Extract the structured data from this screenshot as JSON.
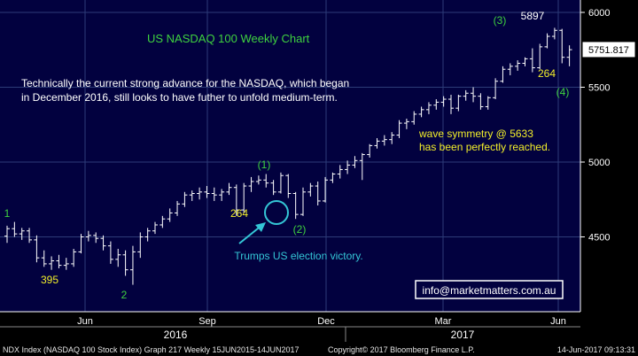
{
  "chart_data": {
    "type": "bar",
    "subtype": "ohlc",
    "title": "US NASDAQ 100 Weekly Chart",
    "x_labels": [
      "Jun",
      "Sep",
      "Dec",
      "Mar",
      "Jun"
    ],
    "year_labels": [
      "2016",
      "2017"
    ],
    "y_ticks": [
      4500,
      5000,
      5500,
      6000
    ],
    "ylim": [
      4000,
      6100
    ],
    "last_price_label": "5751.817",
    "grid": true,
    "colors": {
      "background": "#02013f",
      "grid": "#2d3c78",
      "bars": "#ffffff",
      "green": "#3fd23f",
      "yellow": "#f2ee2a",
      "cyan": "#34c6d6",
      "note": "#ffffff"
    },
    "bars": [
      [
        4505,
        4575,
        4460,
        4555
      ],
      [
        4555,
        4600,
        4500,
        4520
      ],
      [
        4520,
        4560,
        4480,
        4540
      ],
      [
        4540,
        4560,
        4460,
        4480
      ],
      [
        4480,
        4510,
        4330,
        4360
      ],
      [
        4360,
        4410,
        4300,
        4320
      ],
      [
        4320,
        4370,
        4280,
        4340
      ],
      [
        4340,
        4380,
        4290,
        4310
      ],
      [
        4310,
        4360,
        4280,
        4320
      ],
      [
        4320,
        4420,
        4300,
        4400
      ],
      [
        4400,
        4520,
        4390,
        4500
      ],
      [
        4500,
        4540,
        4470,
        4510
      ],
      [
        4510,
        4530,
        4460,
        4490
      ],
      [
        4490,
        4510,
        4410,
        4440
      ],
      [
        4440,
        4470,
        4320,
        4350
      ],
      [
        4350,
        4420,
        4300,
        4380
      ],
      [
        4380,
        4410,
        4240,
        4280
      ],
      [
        4280,
        4440,
        4180,
        4400
      ],
      [
        4400,
        4530,
        4360,
        4500
      ],
      [
        4500,
        4560,
        4470,
        4540
      ],
      [
        4540,
        4600,
        4520,
        4580
      ],
      [
        4580,
        4640,
        4560,
        4620
      ],
      [
        4620,
        4690,
        4600,
        4660
      ],
      [
        4660,
        4740,
        4640,
        4720
      ],
      [
        4720,
        4800,
        4700,
        4780
      ],
      [
        4780,
        4810,
        4740,
        4790
      ],
      [
        4790,
        4830,
        4750,
        4800
      ],
      [
        4800,
        4840,
        4760,
        4790
      ],
      [
        4790,
        4830,
        4740,
        4780
      ],
      [
        4780,
        4820,
        4740,
        4800
      ],
      [
        4800,
        4860,
        4780,
        4830
      ],
      [
        4830,
        4850,
        4640,
        4680
      ],
      [
        4680,
        4860,
        4660,
        4840
      ],
      [
        4840,
        4900,
        4800,
        4870
      ],
      [
        4870,
        4910,
        4850,
        4880
      ],
      [
        4880,
        4920,
        4830,
        4860
      ],
      [
        4860,
        4880,
        4780,
        4800
      ],
      [
        4800,
        4930,
        4790,
        4910
      ],
      [
        4910,
        4920,
        4760,
        4790
      ],
      [
        4790,
        4800,
        4620,
        4650
      ],
      [
        4650,
        4830,
        4640,
        4800
      ],
      [
        4800,
        4860,
        4770,
        4840
      ],
      [
        4840,
        4870,
        4710,
        4740
      ],
      [
        4740,
        4900,
        4730,
        4880
      ],
      [
        4880,
        4930,
        4860,
        4920
      ],
      [
        4920,
        4980,
        4890,
        4950
      ],
      [
        4950,
        5010,
        4920,
        4980
      ],
      [
        4980,
        5040,
        4960,
        5010
      ],
      [
        5010,
        5060,
        4880,
        5050
      ],
      [
        5050,
        5120,
        5030,
        5110
      ],
      [
        5110,
        5160,
        5090,
        5140
      ],
      [
        5140,
        5180,
        5110,
        5150
      ],
      [
        5150,
        5200,
        5120,
        5180
      ],
      [
        5180,
        5280,
        5160,
        5260
      ],
      [
        5260,
        5290,
        5220,
        5270
      ],
      [
        5270,
        5340,
        5250,
        5320
      ],
      [
        5320,
        5370,
        5300,
        5350
      ],
      [
        5350,
        5400,
        5320,
        5380
      ],
      [
        5380,
        5420,
        5350,
        5400
      ],
      [
        5400,
        5440,
        5370,
        5420
      ],
      [
        5420,
        5450,
        5320,
        5360
      ],
      [
        5360,
        5450,
        5340,
        5440
      ],
      [
        5440,
        5480,
        5410,
        5460
      ],
      [
        5460,
        5500,
        5400,
        5440
      ],
      [
        5440,
        5460,
        5350,
        5370
      ],
      [
        5370,
        5440,
        5350,
        5430
      ],
      [
        5430,
        5560,
        5420,
        5540
      ],
      [
        5540,
        5640,
        5530,
        5620
      ],
      [
        5620,
        5660,
        5580,
        5640
      ],
      [
        5640,
        5680,
        5610,
        5660
      ],
      [
        5660,
        5700,
        5640,
        5690
      ],
      [
        5690,
        5760,
        5600,
        5630
      ],
      [
        5630,
        5790,
        5620,
        5770
      ],
      [
        5770,
        5860,
        5760,
        5840
      ],
      [
        5840,
        5897,
        5820,
        5880
      ],
      [
        5880,
        5890,
        5660,
        5700
      ],
      [
        5700,
        5780,
        5640,
        5751
      ]
    ],
    "annotations": [
      {
        "text": "1",
        "color": "green"
      },
      {
        "text": "395",
        "color": "yellow"
      },
      {
        "text": "2",
        "color": "green"
      },
      {
        "text": "264",
        "color": "yellow"
      },
      {
        "text": "(1)",
        "color": "green"
      },
      {
        "text": "(2)",
        "color": "green"
      },
      {
        "text": "(3)",
        "color": "green"
      },
      {
        "text": "5897",
        "color": "white"
      },
      {
        "text": "264",
        "color": "yellow"
      },
      {
        "text": "(4)",
        "color": "green"
      },
      {
        "text": "Trumps US election victory.",
        "color": "cyan"
      }
    ],
    "commentary": [
      "Technically the current strong advance for the NASDAQ, which began",
      "in December 2016, still looks to have futher to unfold medium-term."
    ],
    "wave_note": [
      "wave symmetry @ 5633",
      "has been perfectly reached."
    ],
    "website": "info@marketmatters.com.au"
  },
  "footer": {
    "left": "NDX Index (NASDAQ 100 Stock Index) Graph 217  Weekly 15JUN2015-14JUN2017",
    "middle": "Copyright© 2017 Bloomberg Finance L.P.",
    "right": "14-Jun-2017 09:13:31"
  }
}
